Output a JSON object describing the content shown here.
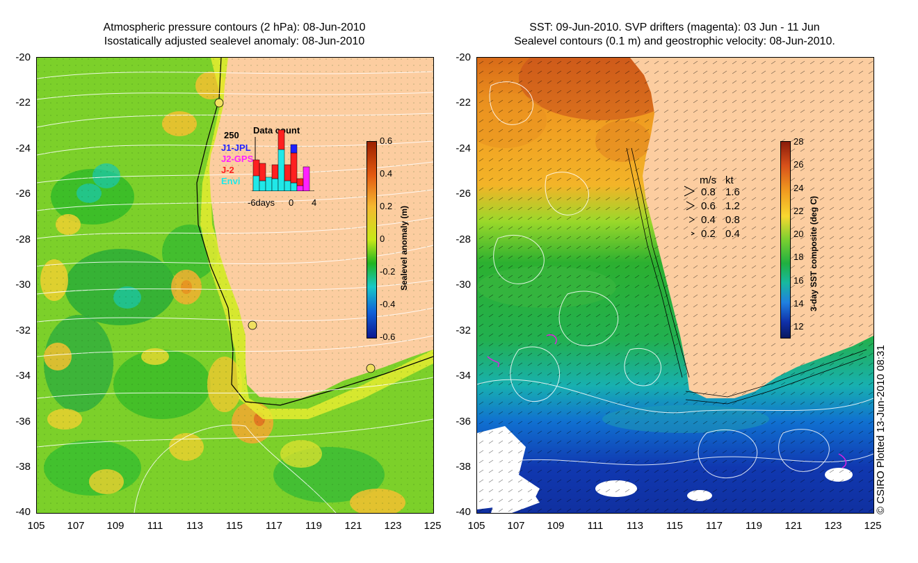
{
  "left_panel": {
    "title_line1": "Atmospheric pressure contours (2 hPa): 08-Jun-2010",
    "title_line2": "Isostatically adjusted sealevel anomaly: 08-Jun-2010",
    "colorbar": {
      "label": "Sealevel anomaly (m)",
      "ticks": [
        "0.6",
        "0.4",
        "0.2",
        "0",
        "-0.2",
        "-0.4",
        "-0.6"
      ],
      "colors": [
        "#9c2000",
        "#e35a10",
        "#f5b830",
        "#c8e818",
        "#22b420",
        "#18c8c8",
        "#1060d8",
        "#0a1890"
      ]
    },
    "data_count": {
      "title": "Data count",
      "max_label": "250",
      "x_left": "-6days",
      "x_mid": "0",
      "x_right": "4",
      "missions": [
        {
          "name": "J1-JPL",
          "color": "#2020ff"
        },
        {
          "name": "J2-GPS",
          "color": "#ff20ff"
        },
        {
          "name": "J-2",
          "color": "#ff2020"
        },
        {
          "name": "Envi",
          "color": "#20e8e8"
        }
      ]
    }
  },
  "right_panel": {
    "title_line1": "SST: 09-Jun-2010. SVP drifters (magenta): 03 Jun - 11 Jun",
    "title_line2": "Sealevel contours (0.1 m) and geostrophic velocity: 08-Jun-2010.",
    "colorbar": {
      "label": "3-day SST composite (deg C)",
      "ticks": [
        "28",
        "26",
        "24",
        "22",
        "20",
        "18",
        "16",
        "14",
        "12"
      ],
      "colors": [
        "#8a1c0a",
        "#d8501a",
        "#f09a20",
        "#f8d830",
        "#7ad030",
        "#20b040",
        "#18b8a0",
        "#2080e0",
        "#1030a8",
        "#081860"
      ]
    },
    "velocity_legend": {
      "header_ms": "m/s",
      "header_kt": "kt",
      "rows": [
        {
          "ms": "0.8",
          "kt": "1.6"
        },
        {
          "ms": "0.6",
          "kt": "1.2"
        },
        {
          "ms": "0.4",
          "kt": "0.8"
        },
        {
          "ms": "0.2",
          "kt": "0.4"
        }
      ]
    }
  },
  "axes": {
    "y_ticks": [
      "-20",
      "-22",
      "-24",
      "-26",
      "-28",
      "-30",
      "-32",
      "-34",
      "-36",
      "-38",
      "-40"
    ],
    "x_ticks": [
      "105",
      "107",
      "109",
      "111",
      "113",
      "115",
      "117",
      "119",
      "121",
      "123",
      "125"
    ]
  },
  "copyright": "© CSIRO Plotted 13-Jun-2010 08:31",
  "colors": {
    "land": "#fccda0",
    "ocean_green": "#7cd02a"
  }
}
